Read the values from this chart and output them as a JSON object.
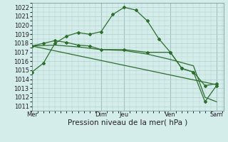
{
  "bg_color": "#d4ecea",
  "grid_color": "#b0d0cc",
  "line_color": "#2d6e2d",
  "marker_color": "#2d6e2d",
  "title": "Pression niveau de la mer( hPa )",
  "ylim": [
    1010.5,
    1022.5
  ],
  "yticks": [
    1011,
    1012,
    1013,
    1014,
    1015,
    1016,
    1017,
    1018,
    1019,
    1020,
    1021,
    1022
  ],
  "day_labels": [
    "Mer",
    "Dim",
    "Jeu",
    "Ven",
    "Sam"
  ],
  "day_positions": [
    0,
    3,
    4,
    6,
    8
  ],
  "series1_x": [
    0,
    0.5,
    1,
    1.5,
    2,
    2.5,
    3,
    3.5,
    4,
    4.5,
    5,
    5.5,
    6,
    6.5,
    7,
    7.5,
    8
  ],
  "series1_y": [
    1014.8,
    1015.8,
    1018.0,
    1018.8,
    1019.2,
    1019.0,
    1019.3,
    1021.2,
    1022.0,
    1021.7,
    1020.5,
    1018.5,
    1017.0,
    1015.2,
    1014.8,
    1013.3,
    1013.5
  ],
  "series2_x": [
    0,
    0.5,
    1,
    1.5,
    2,
    2.5,
    3,
    4,
    5,
    6,
    6.5,
    7,
    7.5,
    8
  ],
  "series2_y": [
    1017.7,
    1018.0,
    1018.3,
    1018.1,
    1017.8,
    1017.7,
    1017.3,
    1017.3,
    1017.0,
    1017.0,
    1015.2,
    1014.8,
    1011.5,
    1013.3
  ],
  "series3_x": [
    0,
    1,
    2,
    3,
    4,
    5,
    6,
    7,
    7.5,
    8
  ],
  "series3_y": [
    1017.7,
    1017.8,
    1017.6,
    1017.3,
    1017.2,
    1016.8,
    1016.2,
    1015.5,
    1012.0,
    1011.5
  ],
  "series4_x": [
    0,
    8
  ],
  "series4_y": [
    1017.7,
    1013.4
  ],
  "xlim": [
    0,
    8.3
  ],
  "tick_fontsize": 6,
  "xlabel_fontsize": 7.5
}
